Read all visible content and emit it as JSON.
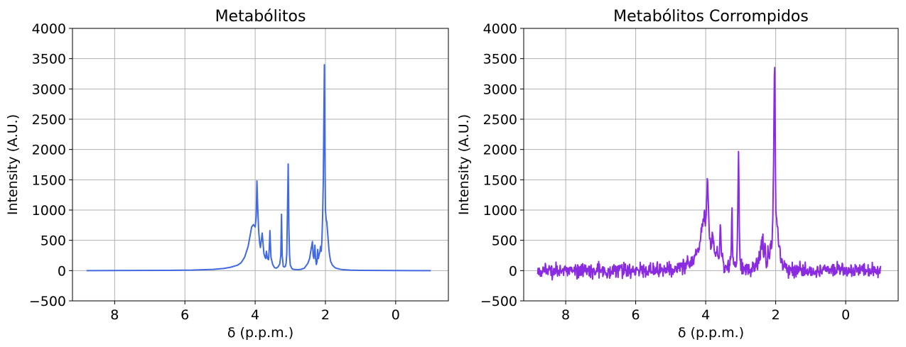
{
  "chart_data": [
    {
      "type": "line",
      "title": "Metabólitos",
      "xlabel": "δ (p.p.m.)",
      "ylabel": "Intensity (A.U.)",
      "xlim": [
        9.2,
        -1.5
      ],
      "ylim": [
        -500,
        4000
      ],
      "x_axis_reversed": true,
      "xticks": [
        8,
        6,
        4,
        2,
        0
      ],
      "xtick_labels": [
        "8",
        "6",
        "4",
        "2",
        "0"
      ],
      "yticks": [
        -500,
        0,
        500,
        1000,
        1500,
        2000,
        2500,
        3000,
        3500,
        4000
      ],
      "ytick_labels": [
        "−500",
        "0",
        "500",
        "1000",
        "1500",
        "2000",
        "2500",
        "3000",
        "3500",
        "4000"
      ],
      "grid": true,
      "color": "#4169e1",
      "series": [
        {
          "x": [
            8.8,
            7.5,
            6.5,
            5.8,
            5.2,
            4.9,
            4.7,
            4.5,
            4.4,
            4.3,
            4.2,
            4.15,
            4.1,
            4.05,
            4.0,
            3.97,
            3.95,
            3.93,
            3.9,
            3.87,
            3.85,
            3.82,
            3.8,
            3.78,
            3.75,
            3.72,
            3.7,
            3.68,
            3.65,
            3.62,
            3.6,
            3.58,
            3.55,
            3.5,
            3.45,
            3.4,
            3.35,
            3.3,
            3.27,
            3.25,
            3.23,
            3.2,
            3.17,
            3.14,
            3.12,
            3.1,
            3.08,
            3.06,
            3.05,
            3.04,
            3.02,
            3.0,
            2.95,
            2.9,
            2.8,
            2.7,
            2.6,
            2.5,
            2.45,
            2.4,
            2.37,
            2.35,
            2.33,
            2.3,
            2.28,
            2.26,
            2.24,
            2.22,
            2.2,
            2.18,
            2.16,
            2.14,
            2.12,
            2.1,
            2.08,
            2.06,
            2.04,
            2.03,
            2.02,
            2.01,
            2.0,
            1.98,
            1.96,
            1.94,
            1.92,
            1.9,
            1.88,
            1.85,
            1.8,
            1.75,
            1.7,
            1.6,
            1.5,
            1.3,
            1.0,
            0.5,
            0.0,
            -0.5,
            -1.0
          ],
          "y": [
            0,
            2,
            4,
            8,
            20,
            35,
            55,
            90,
            130,
            220,
            400,
            560,
            720,
            760,
            720,
            900,
            1480,
            1100,
            650,
            450,
            380,
            520,
            620,
            480,
            280,
            220,
            200,
            320,
            200,
            180,
            350,
            660,
            220,
            100,
            50,
            40,
            60,
            110,
            250,
            930,
            250,
            70,
            60,
            70,
            120,
            280,
            1000,
            1760,
            1300,
            700,
            250,
            90,
            30,
            20,
            15,
            20,
            40,
            120,
            200,
            380,
            480,
            250,
            200,
            420,
            200,
            100,
            140,
            350,
            200,
            260,
            300,
            400,
            320,
            500,
            900,
            1500,
            2800,
            3400,
            2700,
            1700,
            1000,
            850,
            800,
            650,
            500,
            350,
            250,
            150,
            90,
            60,
            40,
            25,
            15,
            8,
            4,
            2,
            1,
            0,
            0
          ]
        }
      ]
    },
    {
      "type": "line",
      "title": "Metabólitos Corrompidos",
      "xlabel": "δ (p.p.m.)",
      "ylabel": "Intensity (A.U.)",
      "xlim": [
        9.2,
        -1.5
      ],
      "ylim": [
        -500,
        4000
      ],
      "x_axis_reversed": true,
      "xticks": [
        8,
        6,
        4,
        2,
        0
      ],
      "xtick_labels": [
        "8",
        "6",
        "4",
        "2",
        "0"
      ],
      "yticks": [
        -500,
        0,
        500,
        1000,
        1500,
        2000,
        2500,
        3000,
        3500,
        4000
      ],
      "ytick_labels": [
        "−500",
        "0",
        "500",
        "1000",
        "1500",
        "2000",
        "2500",
        "3000",
        "3500",
        "4000"
      ],
      "grid": true,
      "color": "#8a2be2",
      "noise_amplitude": 120,
      "series": [
        {
          "x": [
            8.8,
            7.5,
            6.5,
            5.8,
            5.2,
            4.9,
            4.7,
            4.5,
            4.4,
            4.3,
            4.2,
            4.15,
            4.1,
            4.05,
            4.0,
            3.97,
            3.95,
            3.93,
            3.9,
            3.87,
            3.85,
            3.82,
            3.8,
            3.78,
            3.75,
            3.72,
            3.7,
            3.68,
            3.65,
            3.62,
            3.6,
            3.58,
            3.55,
            3.5,
            3.45,
            3.4,
            3.35,
            3.3,
            3.27,
            3.25,
            3.23,
            3.2,
            3.17,
            3.14,
            3.12,
            3.1,
            3.08,
            3.06,
            3.05,
            3.04,
            3.02,
            3.0,
            2.95,
            2.9,
            2.8,
            2.7,
            2.6,
            2.5,
            2.45,
            2.4,
            2.37,
            2.35,
            2.33,
            2.3,
            2.28,
            2.26,
            2.24,
            2.22,
            2.2,
            2.18,
            2.16,
            2.14,
            2.12,
            2.1,
            2.08,
            2.06,
            2.04,
            2.03,
            2.02,
            2.01,
            2.0,
            1.98,
            1.96,
            1.94,
            1.92,
            1.9,
            1.88,
            1.85,
            1.8,
            1.75,
            1.7,
            1.6,
            1.5,
            1.3,
            1.0,
            0.5,
            0.0,
            -0.5,
            -1.0
          ],
          "y": [
            0,
            2,
            4,
            8,
            20,
            35,
            55,
            90,
            130,
            220,
            400,
            560,
            820,
            900,
            800,
            1100,
            1580,
            1150,
            700,
            480,
            400,
            560,
            650,
            500,
            300,
            240,
            220,
            360,
            220,
            200,
            380,
            830,
            240,
            110,
            55,
            45,
            65,
            120,
            280,
            1100,
            280,
            80,
            65,
            75,
            130,
            300,
            1150,
            2000,
            1400,
            750,
            270,
            100,
            35,
            25,
            18,
            22,
            45,
            140,
            230,
            420,
            560,
            280,
            230,
            480,
            220,
            110,
            160,
            390,
            220,
            290,
            330,
            440,
            350,
            560,
            1000,
            1700,
            3100,
            3500,
            2900,
            1800,
            1050,
            880,
            820,
            680,
            520,
            360,
            260,
            160,
            95,
            65,
            45,
            28,
            18,
            10,
            5,
            3,
            1,
            0,
            0
          ]
        }
      ]
    }
  ]
}
